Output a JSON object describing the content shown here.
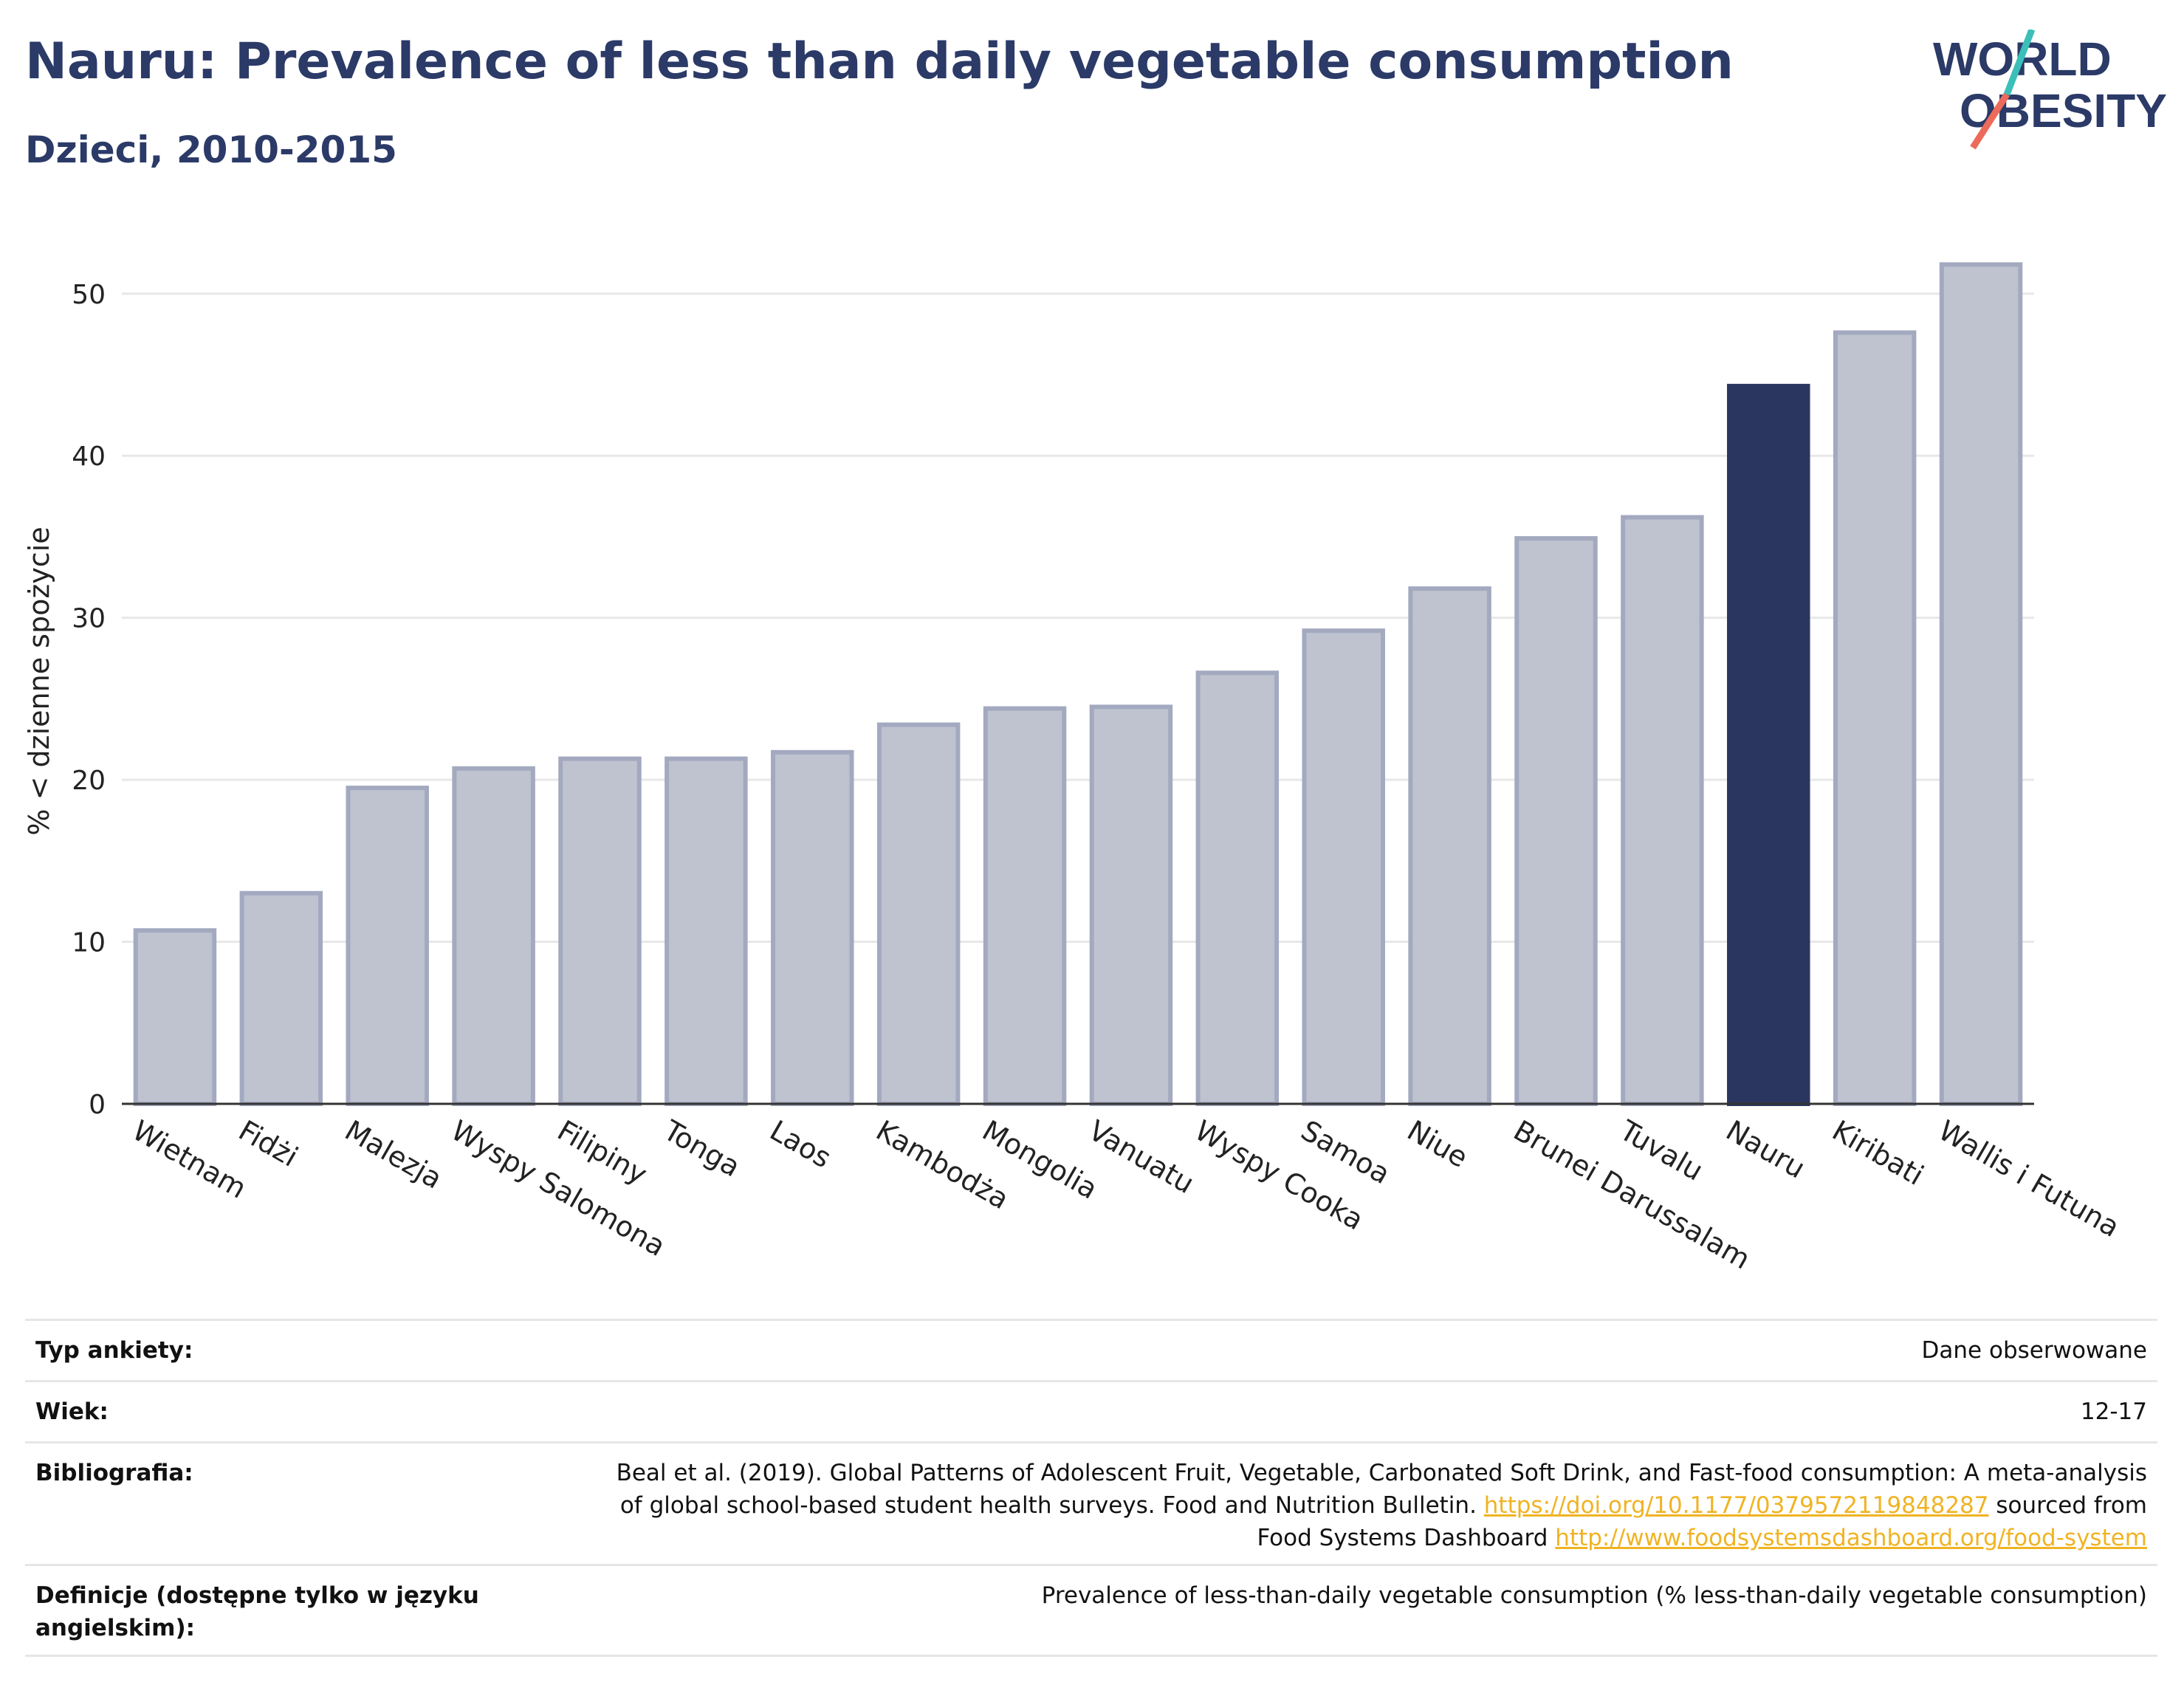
{
  "header": {
    "title": "Nauru: Prevalence of less than daily vegetable consumption",
    "subtitle": "Dzieci, 2010-2015",
    "logo_line1": "WORLD",
    "logo_line2": "OBESITY"
  },
  "chart_data": {
    "type": "bar",
    "title": "Nauru: Prevalence of less than daily vegetable consumption",
    "subtitle": "Dzieci, 2010-2015",
    "ylabel": "% < dzienne spożycie",
    "xlabel": "",
    "ylim": [
      0,
      54
    ],
    "yticks": [
      0,
      10,
      20,
      30,
      40,
      50
    ],
    "grid": true,
    "highlight": "Nauru",
    "colors": {
      "bar": "#bfc3d0",
      "bar_edge": "#a3a9bf",
      "highlight": "#2b3660"
    },
    "categories": [
      "Wietnam",
      "Fidżi",
      "Malezja",
      "Wyspy Salomona",
      "Filipiny",
      "Tonga",
      "Laos",
      "Kambodża",
      "Mongolia",
      "Vanuatu",
      "Wyspy Cooka",
      "Samoa",
      "Niue",
      "Brunei Darussalam",
      "Tuvalu",
      "Nauru",
      "Kiribati",
      "Wallis i Futuna"
    ],
    "values": [
      10.7,
      13.0,
      19.5,
      20.7,
      21.3,
      21.3,
      21.7,
      23.4,
      24.4,
      24.5,
      26.6,
      29.2,
      31.8,
      34.9,
      36.2,
      44.3,
      47.6,
      51.8
    ]
  },
  "meta": {
    "survey_label": "Typ ankiety:",
    "survey_value": "Dane obserwowane",
    "age_label": "Wiek:",
    "age_value": "12-17",
    "bib_label": "Bibliografia:",
    "bib_text1": "Beal et al. (2019). Global Patterns of Adolescent Fruit, Vegetable, Carbonated Soft Drink, and Fast-food consumption: A meta-analysis",
    "bib_text2": "of global school-based student health surveys. Food and Nutrition Bulletin.",
    "bib_link1": "https://doi.org/10.1177/0379572119848287",
    "bib_text3": "sourced from",
    "bib_text4": "Food Systems Dashboard",
    "bib_link2": "http://www.foodsystemsdashboard.org/food-system",
    "def_label": "Definicje (dostępne tylko w języku angielskim):",
    "def_value": "Prevalence of less-than-daily vegetable consumption (% less-than-daily vegetable consumption)"
  }
}
